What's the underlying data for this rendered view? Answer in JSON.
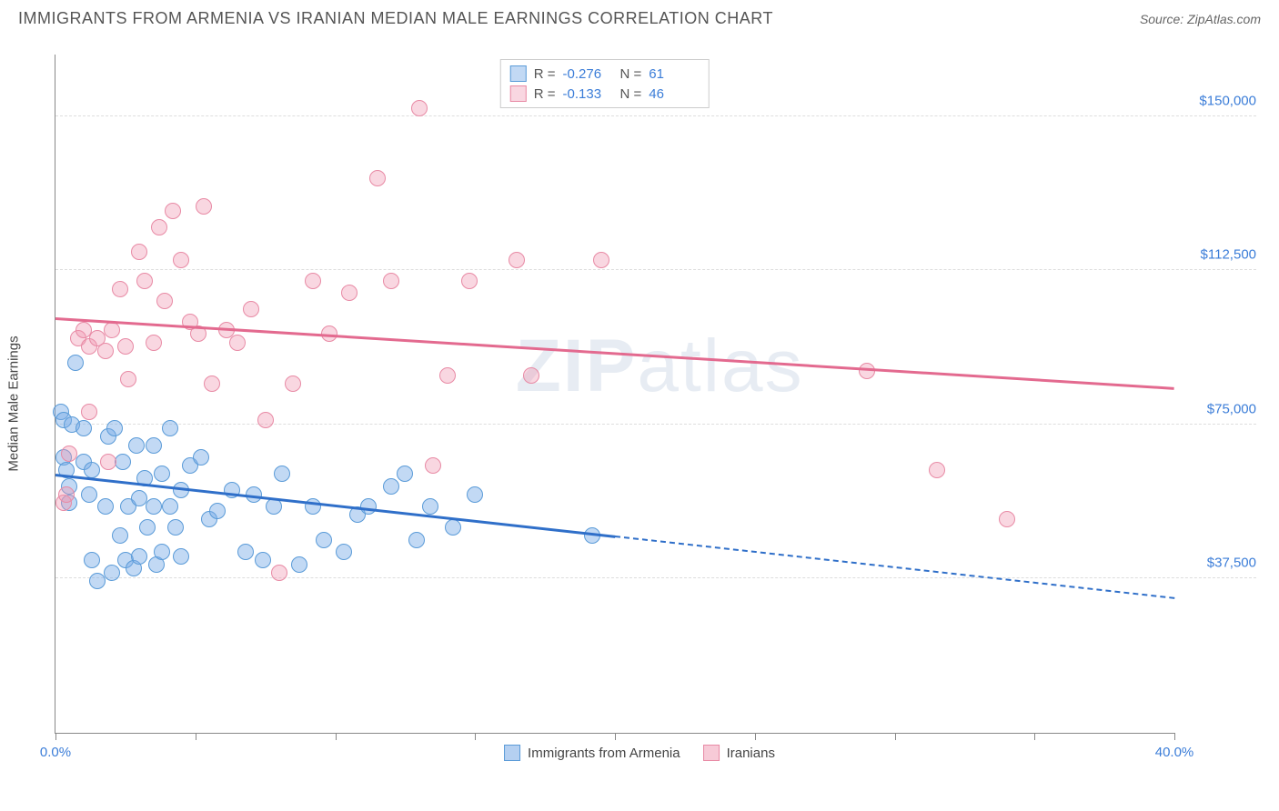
{
  "title": "IMMIGRANTS FROM ARMENIA VS IRANIAN MEDIAN MALE EARNINGS CORRELATION CHART",
  "source": "Source: ZipAtlas.com",
  "watermark": "ZIPatlas",
  "chart": {
    "type": "scatter",
    "y_axis_title": "Median Male Earnings",
    "xlim": [
      0,
      40
    ],
    "ylim": [
      0,
      165000
    ],
    "x_ticks": [
      0,
      5,
      10,
      15,
      20,
      25,
      30,
      35,
      40
    ],
    "x_tick_labels": {
      "0": "0.0%",
      "40": "40.0%"
    },
    "x_label_color": "#3b7dd8",
    "y_grid": [
      37500,
      75000,
      112500,
      150000
    ],
    "y_tick_labels": [
      "$37,500",
      "$75,000",
      "$112,500",
      "$150,000"
    ],
    "y_label_color": "#3b7dd8",
    "grid_color": "#dddddd",
    "background_color": "#ffffff",
    "point_radius": 9,
    "series": [
      {
        "name": "Immigrants from Armenia",
        "color_fill": "rgba(120,170,230,0.45)",
        "color_stroke": "#5a9bd8",
        "trend_color": "#2f6fc9",
        "R": "-0.276",
        "N": "61",
        "trend": {
          "x1": 0,
          "y1": 63000,
          "x2": 20,
          "y2": 48000
        },
        "trend_ext": {
          "x1": 20,
          "y1": 48000,
          "x2": 40,
          "y2": 33000
        },
        "points": [
          [
            0.2,
            78000
          ],
          [
            0.3,
            76000
          ],
          [
            0.3,
            67000
          ],
          [
            0.4,
            64000
          ],
          [
            0.5,
            56000
          ],
          [
            0.5,
            60000
          ],
          [
            0.6,
            75000
          ],
          [
            0.7,
            90000
          ],
          [
            1.0,
            74000
          ],
          [
            1.0,
            66000
          ],
          [
            1.2,
            58000
          ],
          [
            1.3,
            64000
          ],
          [
            1.3,
            42000
          ],
          [
            1.5,
            37000
          ],
          [
            1.8,
            55000
          ],
          [
            1.9,
            72000
          ],
          [
            2.0,
            39000
          ],
          [
            2.1,
            74000
          ],
          [
            2.3,
            48000
          ],
          [
            2.4,
            66000
          ],
          [
            2.5,
            42000
          ],
          [
            2.6,
            55000
          ],
          [
            2.8,
            40000
          ],
          [
            2.9,
            70000
          ],
          [
            3.0,
            57000
          ],
          [
            3.0,
            43000
          ],
          [
            3.2,
            62000
          ],
          [
            3.3,
            50000
          ],
          [
            3.5,
            70000
          ],
          [
            3.5,
            55000
          ],
          [
            3.6,
            41000
          ],
          [
            3.8,
            44000
          ],
          [
            3.8,
            63000
          ],
          [
            4.1,
            55000
          ],
          [
            4.1,
            74000
          ],
          [
            4.3,
            50000
          ],
          [
            4.5,
            59000
          ],
          [
            4.5,
            43000
          ],
          [
            4.8,
            65000
          ],
          [
            5.2,
            67000
          ],
          [
            5.5,
            52000
          ],
          [
            5.8,
            54000
          ],
          [
            6.3,
            59000
          ],
          [
            6.8,
            44000
          ],
          [
            7.1,
            58000
          ],
          [
            7.4,
            42000
          ],
          [
            7.8,
            55000
          ],
          [
            8.1,
            63000
          ],
          [
            8.7,
            41000
          ],
          [
            9.2,
            55000
          ],
          [
            9.6,
            47000
          ],
          [
            10.3,
            44000
          ],
          [
            10.8,
            53000
          ],
          [
            11.2,
            55000
          ],
          [
            12.0,
            60000
          ],
          [
            12.5,
            63000
          ],
          [
            12.9,
            47000
          ],
          [
            13.4,
            55000
          ],
          [
            14.2,
            50000
          ],
          [
            15.0,
            58000
          ],
          [
            19.2,
            48000
          ]
        ]
      },
      {
        "name": "Iranians",
        "color_fill": "rgba(240,150,175,0.38)",
        "color_stroke": "#e88aa5",
        "trend_color": "#e36a8f",
        "R": "-0.133",
        "N": "46",
        "trend": {
          "x1": 0,
          "y1": 101000,
          "x2": 40,
          "y2": 84000
        },
        "points": [
          [
            0.3,
            56000
          ],
          [
            0.4,
            58000
          ],
          [
            0.5,
            68000
          ],
          [
            0.8,
            96000
          ],
          [
            1.0,
            98000
          ],
          [
            1.2,
            94000
          ],
          [
            1.2,
            78000
          ],
          [
            1.5,
            96000
          ],
          [
            1.8,
            93000
          ],
          [
            1.9,
            66000
          ],
          [
            2.0,
            98000
          ],
          [
            2.3,
            108000
          ],
          [
            2.5,
            94000
          ],
          [
            2.6,
            86000
          ],
          [
            3.0,
            117000
          ],
          [
            3.2,
            110000
          ],
          [
            3.5,
            95000
          ],
          [
            3.7,
            123000
          ],
          [
            3.9,
            105000
          ],
          [
            4.2,
            127000
          ],
          [
            4.5,
            115000
          ],
          [
            4.8,
            100000
          ],
          [
            5.1,
            97000
          ],
          [
            5.3,
            128000
          ],
          [
            5.6,
            85000
          ],
          [
            6.1,
            98000
          ],
          [
            6.5,
            95000
          ],
          [
            7.0,
            103000
          ],
          [
            7.5,
            76000
          ],
          [
            8.0,
            39000
          ],
          [
            8.5,
            85000
          ],
          [
            9.2,
            110000
          ],
          [
            9.8,
            97000
          ],
          [
            10.5,
            107000
          ],
          [
            11.5,
            135000
          ],
          [
            12.0,
            110000
          ],
          [
            13.0,
            152000
          ],
          [
            13.5,
            65000
          ],
          [
            14.0,
            87000
          ],
          [
            14.8,
            110000
          ],
          [
            16.5,
            115000
          ],
          [
            17.0,
            87000
          ],
          [
            19.5,
            115000
          ],
          [
            29.0,
            88000
          ],
          [
            31.5,
            64000
          ],
          [
            34.0,
            52000
          ]
        ]
      }
    ],
    "bottom_legend": [
      {
        "label": "Immigrants from Armenia",
        "fill": "rgba(120,170,230,0.55)",
        "stroke": "#5a9bd8"
      },
      {
        "label": "Iranians",
        "fill": "rgba(240,150,175,0.5)",
        "stroke": "#e88aa5"
      }
    ]
  }
}
